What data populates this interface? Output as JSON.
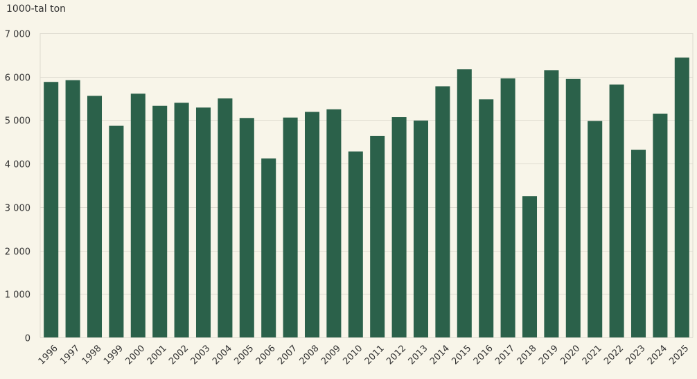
{
  "chart_data": {
    "type": "bar",
    "ylabel": "1000-tal ton",
    "categories": [
      "1996",
      "1997",
      "1998",
      "1999",
      "2000",
      "2001",
      "2002",
      "2003",
      "2004",
      "2005",
      "2006",
      "2007",
      "2008",
      "2009",
      "2010",
      "2011",
      "2012",
      "2013",
      "2014",
      "2015",
      "2016",
      "2017",
      "2018",
      "2019",
      "2020",
      "2021",
      "2022",
      "2023",
      "2024",
      "2025"
    ],
    "values": [
      5880,
      5920,
      5560,
      4870,
      5610,
      5330,
      5400,
      5290,
      5500,
      5050,
      4120,
      5060,
      5190,
      5250,
      4280,
      4640,
      5070,
      4990,
      5780,
      6170,
      5480,
      5960,
      3250,
      6150,
      5950,
      4980,
      5820,
      4320,
      5150,
      6440
    ],
    "ylim": [
      0,
      7000
    ],
    "yticks": [
      0,
      1000,
      2000,
      3000,
      4000,
      5000,
      6000,
      7000
    ],
    "ytick_labels": [
      "0",
      "1 000",
      "2 000",
      "3 000",
      "4 000",
      "5 000",
      "6 000",
      "7 000"
    ],
    "grid": true,
    "bar_color": "#2b614a",
    "background_color": "#f8f5e9",
    "grid_color": "#dedbd0"
  }
}
